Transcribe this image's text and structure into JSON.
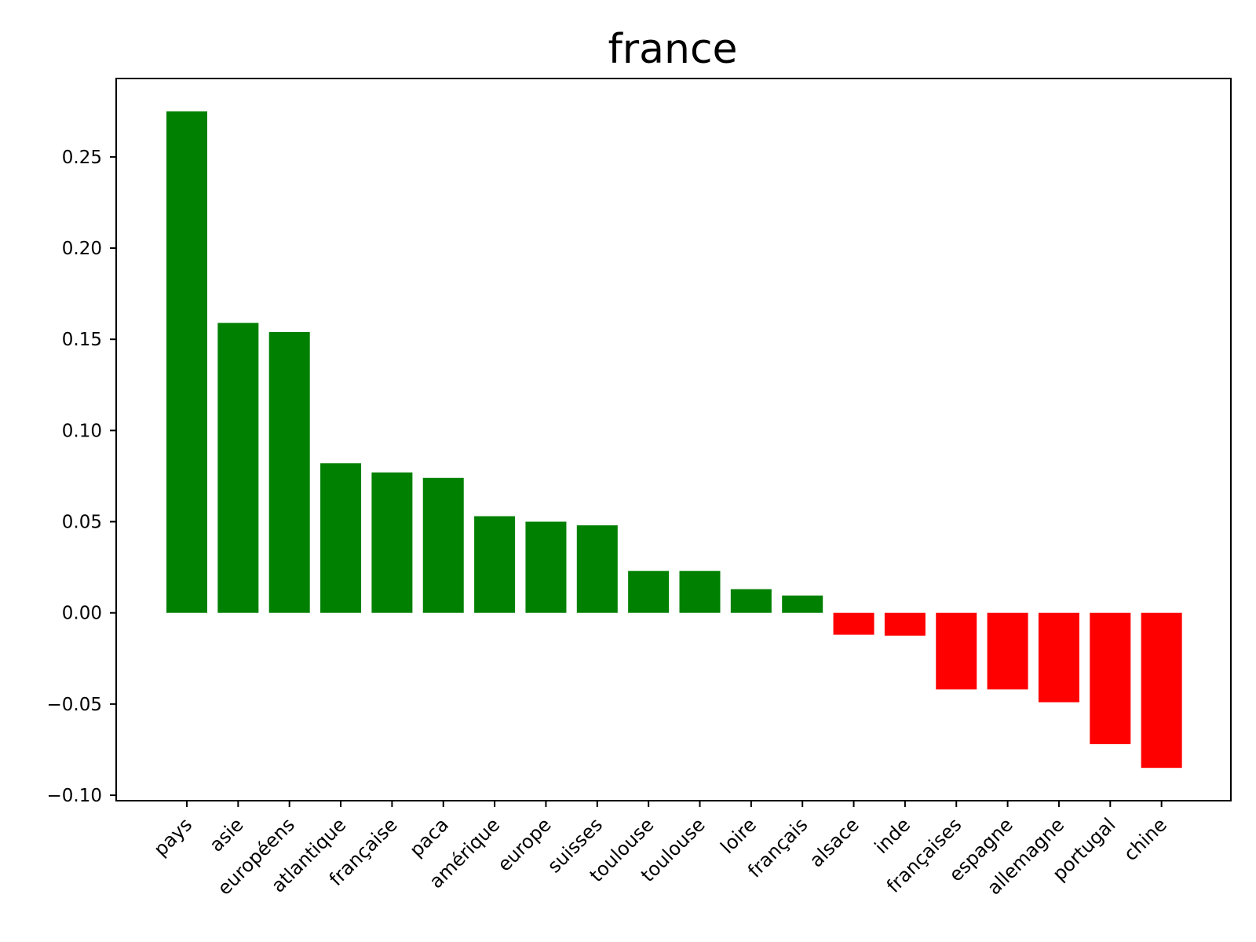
{
  "chart_data": {
    "type": "bar",
    "title": "france",
    "xlabel": "",
    "ylabel": "",
    "categories": [
      "pays",
      "asie",
      "européens",
      "atlantique",
      "française",
      "paca",
      "amérique",
      "europe",
      "suisses",
      "toulouse",
      "toulouse",
      "loire",
      "français",
      "alsace",
      "inde",
      "françaises",
      "espagne",
      "allemagne",
      "portugal",
      "chine"
    ],
    "values": [
      0.275,
      0.159,
      0.154,
      0.082,
      0.077,
      0.074,
      0.053,
      0.05,
      0.048,
      0.023,
      0.023,
      0.013,
      0.0095,
      -0.012,
      -0.0125,
      -0.042,
      -0.042,
      -0.049,
      -0.072,
      -0.085
    ],
    "ylim": [
      -0.103,
      0.293
    ],
    "yticks": [
      -0.1,
      -0.05,
      0.0,
      0.05,
      0.1,
      0.15,
      0.2,
      0.25
    ],
    "ytick_labels": [
      "−0.10",
      "−0.05",
      "0.00",
      "0.05",
      "0.10",
      "0.15",
      "0.20",
      "0.25"
    ],
    "colors": {
      "positive": "#008000",
      "negative": "#ff0000",
      "axis": "#000000"
    },
    "grid": false,
    "xtick_rotation": 45
  }
}
